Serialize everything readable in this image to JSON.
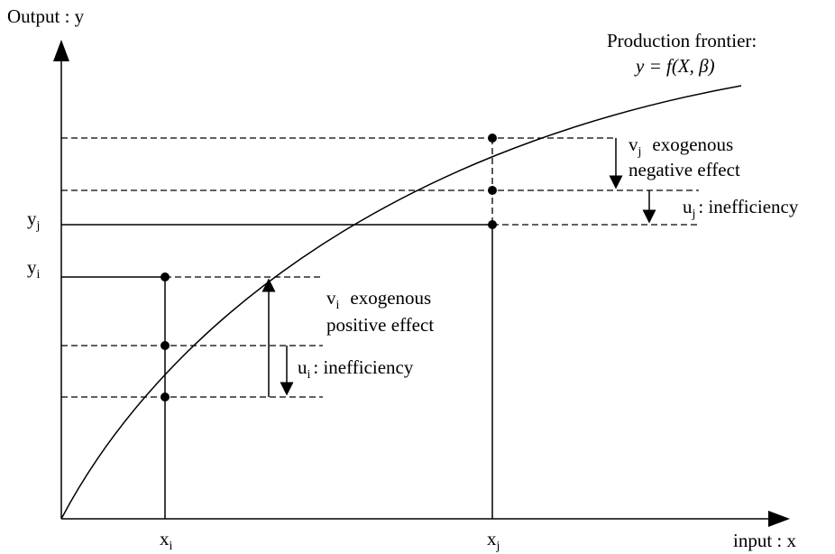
{
  "axes": {
    "y_label": "Output : y",
    "x_label": "input : x"
  },
  "frontier": {
    "title": "Production frontier:",
    "formula": "y = f(X, β)"
  },
  "ticks": {
    "yj": {
      "base": "y",
      "sub": "j"
    },
    "yi": {
      "base": "y",
      "sub": "i"
    },
    "xi": {
      "base": "x",
      "sub": "i"
    },
    "xj": {
      "base": "x",
      "sub": "j"
    }
  },
  "annotations": {
    "vj": {
      "base": "v",
      "sub": "j",
      "line1": "exogenous",
      "line2": "negative effect"
    },
    "uj": {
      "base": "u",
      "sub": "j",
      "text": ": inefficiency"
    },
    "vi": {
      "base": "v",
      "sub": "i",
      "line1": "exogenous",
      "line2": "positive effect"
    },
    "ui": {
      "base": "u",
      "sub": "i",
      "text": ": inefficiency"
    }
  }
}
